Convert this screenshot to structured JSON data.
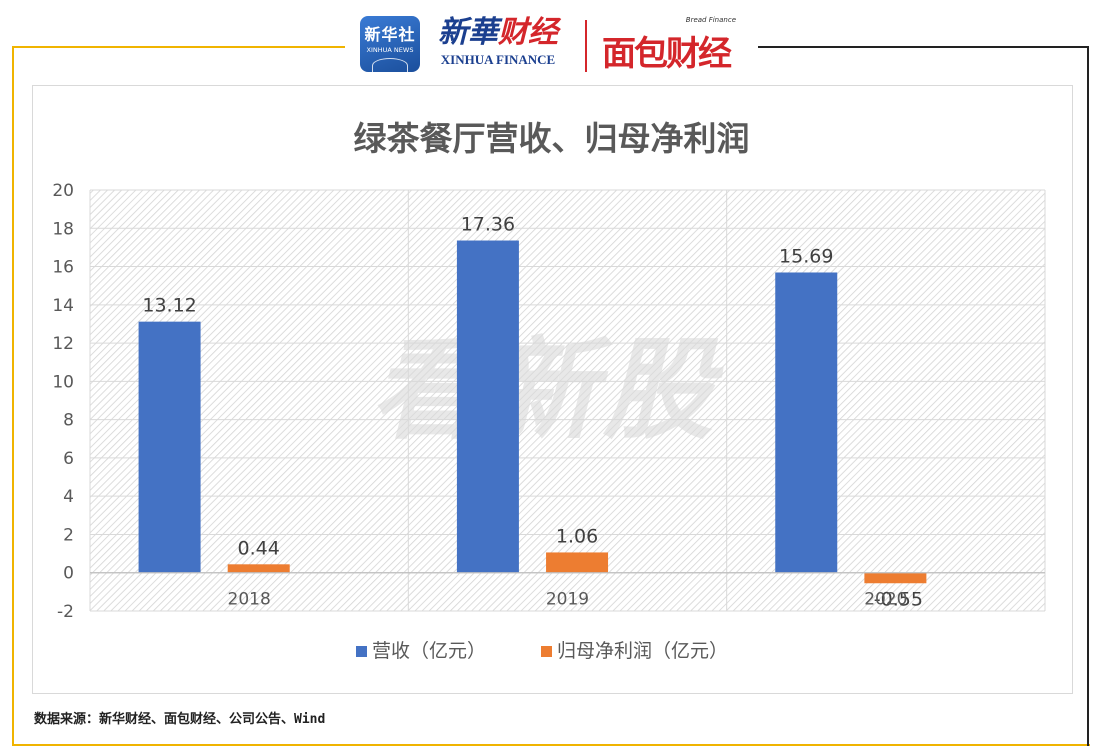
{
  "header": {
    "xinhua_logo": {
      "cn": "新华社",
      "en": "XINHUA NEWS"
    },
    "xinhua_finance_logo": {
      "cn_a": "新華",
      "cn_b": "财经",
      "en": "XINHUA FINANCE"
    },
    "bread_finance_logo": {
      "tag": "Bread Finance",
      "cn": "面包财经"
    }
  },
  "watermark": "看新股",
  "chart_data": {
    "type": "bar",
    "title": "绿茶餐厅营收、归母净利润",
    "categories": [
      "2018",
      "2019",
      "2020"
    ],
    "series": [
      {
        "name": "营收（亿元）",
        "values": [
          13.12,
          17.36,
          15.69
        ],
        "labels": [
          "13.12",
          "17.36",
          "15.69"
        ],
        "color": "#4472c4"
      },
      {
        "name": "归母净利润（亿元）",
        "values": [
          0.44,
          1.06,
          -0.55
        ],
        "labels": [
          "0.44",
          "1.06",
          "-0.55"
        ],
        "color": "#ed7d31"
      }
    ],
    "ylim": [
      -2,
      20
    ],
    "yticks": [
      "-2",
      "0",
      "2",
      "4",
      "6",
      "8",
      "10",
      "12",
      "14",
      "16",
      "18",
      "20"
    ],
    "xlabel": "",
    "ylabel": "",
    "grid": true,
    "legend": "bottom"
  },
  "footer": {
    "source": "数据来源：新华财经、面包财经、公司公告、Wind"
  }
}
